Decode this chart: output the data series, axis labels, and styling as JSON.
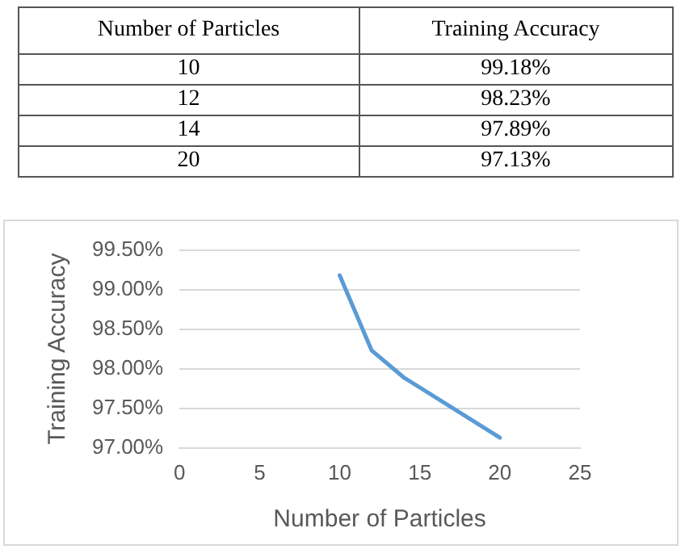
{
  "chart_data": [
    {
      "type": "other",
      "xlabel": "Number of Particles",
      "ylabel": "Training Accuracy",
      "categories": [
        "10",
        "12",
        "14",
        "20"
      ],
      "value_labels": [
        "99.18%",
        "98.23%",
        "97.89%",
        "97.13%"
      ]
    },
    {
      "type": "line",
      "xlabel": "Number of Particles",
      "ylabel": "Training Accuracy",
      "x": [
        10,
        12,
        14,
        20
      ],
      "series": [
        {
          "color": "#5b9bd5",
          "values": [
            99.18,
            98.23,
            97.89,
            97.13
          ]
        }
      ],
      "xlim": [
        0,
        25
      ],
      "xticks": [
        0,
        5,
        10,
        15,
        20,
        25
      ],
      "ylim": [
        97,
        99.5
      ],
      "yticks": [
        {
          "value": 97,
          "label": "97.00%"
        },
        {
          "value": 97.5,
          "label": "97.50%"
        },
        {
          "value": 98,
          "label": "98.00%"
        },
        {
          "value": 98.5,
          "label": "98.50%"
        },
        {
          "value": 99,
          "label": "99.00%"
        },
        {
          "value": 99.5,
          "label": "99.50%"
        }
      ],
      "grid": "y",
      "marker": "none",
      "line_style": "solid",
      "legend": false
    }
  ]
}
